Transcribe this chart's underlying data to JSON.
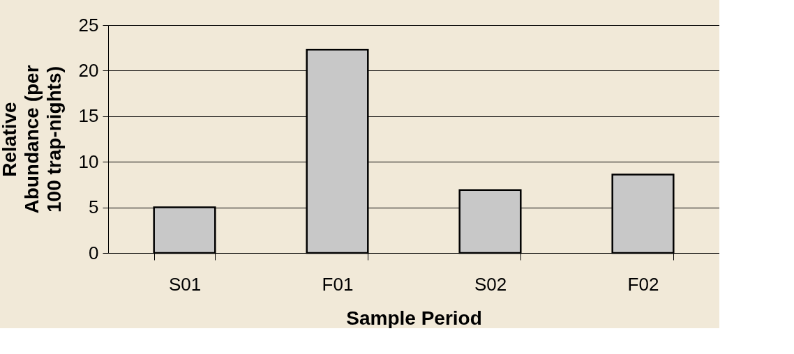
{
  "chart_data": {
    "type": "bar",
    "xlabel": "Sample Period",
    "ylabel": "Relative\nAbundance (per\n100 trap-nights)",
    "categories": [
      "S01",
      "F01",
      "S02",
      "F02"
    ],
    "values": [
      5.0,
      22.3,
      6.9,
      8.6
    ],
    "color": "#c8c8c8",
    "ylim": [
      0,
      25
    ],
    "yticks": [
      0,
      5,
      10,
      15,
      20,
      25
    ],
    "grid": "y"
  }
}
